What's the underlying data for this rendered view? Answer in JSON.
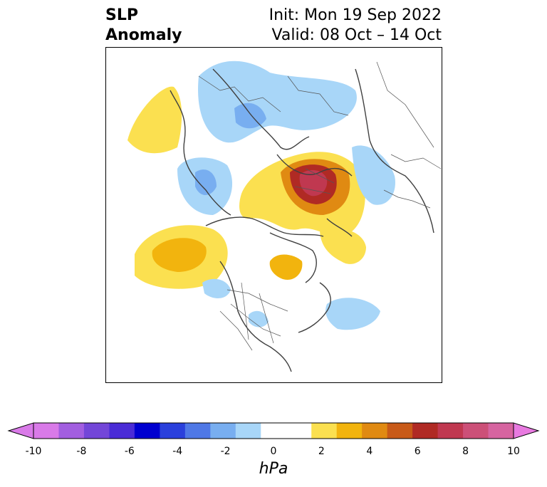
{
  "header": {
    "variable_line1": "SLP",
    "variable_line2": "Anomaly",
    "init_text": "Init: Mon 19 Sep 2022",
    "valid_text": "Valid: 08 Oct – 14 Oct"
  },
  "colorbar": {
    "unit": "hPa",
    "ticks": [
      "-10",
      "-8",
      "-6",
      "-4",
      "-2",
      "0",
      "2",
      "4",
      "6",
      "8",
      "10"
    ],
    "tick_values": [
      -10,
      -8,
      -6,
      -4,
      -2,
      0,
      2,
      4,
      6,
      8,
      10
    ],
    "bins": [
      "#d97ae8",
      "#a25ee0",
      "#7346d8",
      "#4a2cd6",
      "#0000d0",
      "#2a40dc",
      "#4f78e6",
      "#78aef0",
      "#a8d6f8",
      "#ffffff",
      "#ffffff",
      "#fbe050",
      "#f2b40e",
      "#e08a12",
      "#c85a18",
      "#b02a24",
      "#c03850",
      "#cc5078",
      "#d664a0"
    ],
    "extend_low": "#d97ae8",
    "extend_high": "#e87ae0"
  }
}
